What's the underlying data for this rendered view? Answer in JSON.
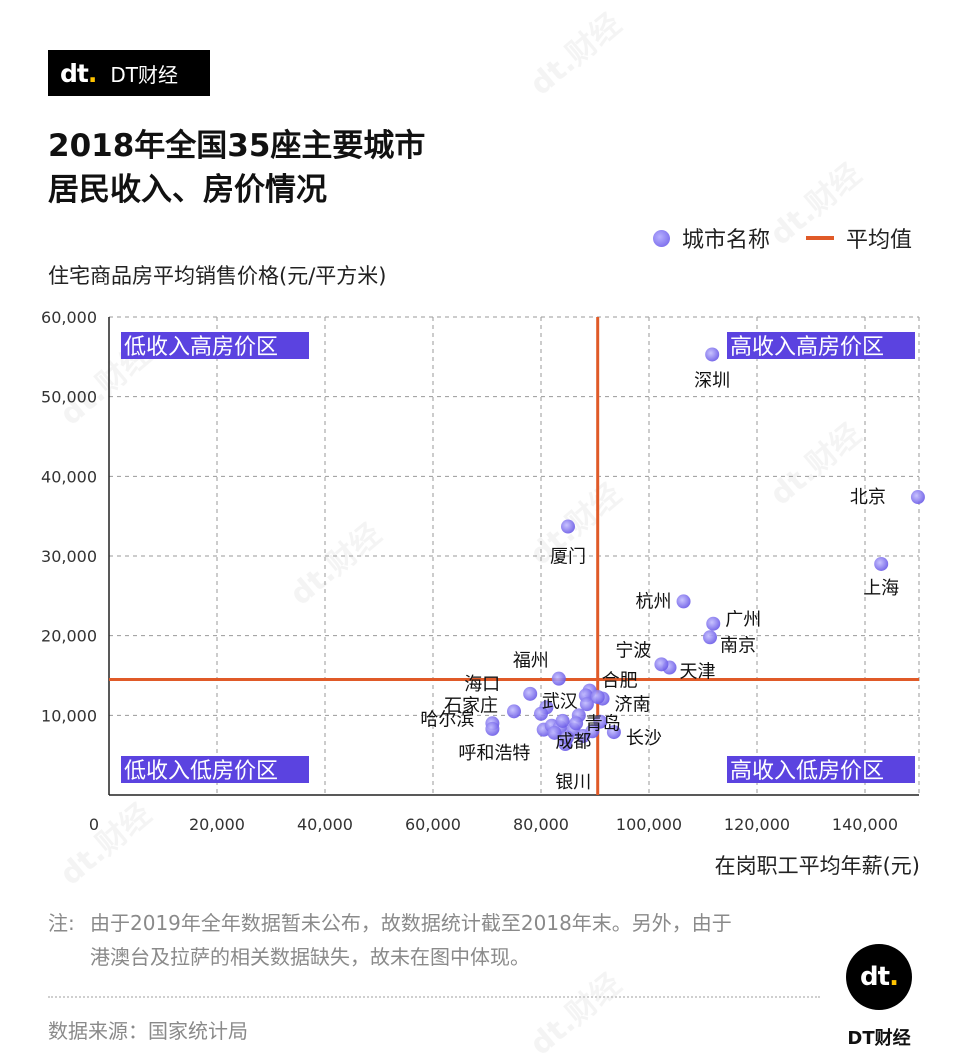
{
  "brand": {
    "logo_text": "dt.",
    "name": "DT财经"
  },
  "title_lines": [
    "2018年全国35座主要城市",
    "居民收入、房价情况"
  ],
  "legend": {
    "dot_label": "城市名称",
    "line_label": "平均值"
  },
  "watermark_text": "dt.财经",
  "note": {
    "prefix": "注:",
    "line1": "由于2019年全年数据暂未公布，故数据统计截至2018年末。另外，由于",
    "line2": "港澳台及拉萨的相关数据缺失，故未在图中体现。"
  },
  "source": "数据来源：国家统计局",
  "footer_brand": "DT财经",
  "colors": {
    "point": "#6c5ce7",
    "avg_line": "#e05a28",
    "quadrant_label_bg": "#5b43e0",
    "grid": "#9a9a9a"
  },
  "chart_data": {
    "type": "scatter",
    "xlabel": "在岗职工平均年薪(元)",
    "ylabel": "住宅商品房平均销售价格(元/平方米)",
    "xlim": [
      0,
      150000
    ],
    "ylim": [
      0,
      60000
    ],
    "x_ticks": [
      0,
      20000,
      40000,
      60000,
      80000,
      100000,
      120000,
      140000
    ],
    "x_tick_labels": [
      "0",
      "20,000",
      "40,000",
      "60,000",
      "80,000",
      "100,000",
      "120,000",
      "140,000"
    ],
    "y_ticks": [
      10000,
      20000,
      30000,
      40000,
      50000,
      60000
    ],
    "y_tick_labels": [
      "10,000",
      "20,000",
      "30,000",
      "40,000",
      "50,000",
      "60,000"
    ],
    "grid": true,
    "averages": {
      "x": 90500,
      "y": 14500
    },
    "quadrant_labels": [
      {
        "text": "低收入高房价区",
        "position": "top-left"
      },
      {
        "text": "高收入高房价区",
        "position": "top-right"
      },
      {
        "text": "低收入低房价区",
        "position": "bottom-left"
      },
      {
        "text": "高收入低房价区",
        "position": "bottom-right"
      }
    ],
    "points": [
      {
        "name": "北京",
        "x": 149800,
        "y": 37400
      },
      {
        "name": "上海",
        "x": 143000,
        "y": 29000
      },
      {
        "name": "深圳",
        "x": 111700,
        "y": 55300
      },
      {
        "name": "厦门",
        "x": 85000,
        "y": 33700
      },
      {
        "name": "杭州",
        "x": 106400,
        "y": 24300
      },
      {
        "name": "广州",
        "x": 111900,
        "y": 21500
      },
      {
        "name": "南京",
        "x": 111300,
        "y": 19800
      },
      {
        "name": "天津",
        "x": 103800,
        "y": 16000
      },
      {
        "name": "宁波",
        "x": 102300,
        "y": 16400
      },
      {
        "name": "福州",
        "x": 83300,
        "y": 14600
      },
      {
        "name": "合肥",
        "x": 89000,
        "y": 13100
      },
      {
        "name": "济南",
        "x": 91400,
        "y": 12100
      },
      {
        "name": "武汉",
        "x": 88300,
        "y": 12500
      },
      {
        "name": "海口",
        "x": 78000,
        "y": 12700
      },
      {
        "name": "石家庄",
        "x": 75000,
        "y": 10500
      },
      {
        "name": "青岛",
        "x": 87000,
        "y": 10000
      },
      {
        "name": "哈尔滨",
        "x": 71000,
        "y": 9000
      },
      {
        "name": "呼和浩特",
        "x": 71000,
        "y": 8300
      },
      {
        "name": "成都",
        "x": 86000,
        "y": 8200
      },
      {
        "name": "长沙",
        "x": 93500,
        "y": 7900
      },
      {
        "name": "银川",
        "x": 84500,
        "y": 6400
      },
      {
        "x": 81000,
        "y": 11000
      },
      {
        "x": 80500,
        "y": 8200
      },
      {
        "x": 82000,
        "y": 8700
      },
      {
        "x": 83500,
        "y": 8500
      },
      {
        "x": 84800,
        "y": 7200
      },
      {
        "x": 86500,
        "y": 9000
      },
      {
        "x": 88500,
        "y": 11400
      },
      {
        "x": 90500,
        "y": 12300
      },
      {
        "x": 84000,
        "y": 9300
      },
      {
        "x": 82500,
        "y": 7800
      },
      {
        "x": 87800,
        "y": 7400
      },
      {
        "x": 89500,
        "y": 8000
      },
      {
        "x": 91000,
        "y": 9200
      },
      {
        "x": 80000,
        "y": 10200
      }
    ]
  }
}
